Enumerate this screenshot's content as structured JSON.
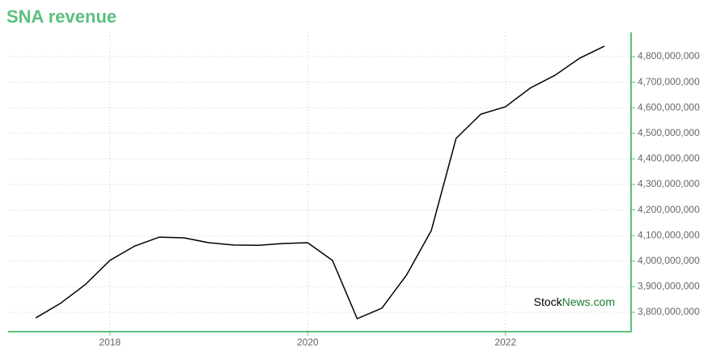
{
  "chart_data": {
    "type": "line",
    "title": "SNA revenue",
    "x": [
      2017.25,
      2017.5,
      2017.75,
      2018,
      2018.25,
      2018.5,
      2018.75,
      2019,
      2019.25,
      2019.5,
      2019.75,
      2020,
      2020.25,
      2020.5,
      2020.75,
      2021,
      2021.25,
      2021.5,
      2021.75,
      2022,
      2022.25,
      2022.5,
      2022.75,
      2023
    ],
    "series": [
      {
        "name": "SNA revenue",
        "color": "#000000",
        "values": [
          3778000000,
          3835000000,
          3908000000,
          4003000000,
          4059000000,
          4094000000,
          4091000000,
          4072000000,
          4063000000,
          4062000000,
          4069000000,
          4072000000,
          4003000000,
          3775000000,
          3816000000,
          3946000000,
          4120000000,
          4480000000,
          4575000000,
          4604000000,
          4677000000,
          4727000000,
          4794000000,
          4841000000
        ]
      }
    ],
    "xlim": [
      2016.97,
      2023.27
    ],
    "xticks": [
      2018,
      2020,
      2022
    ],
    "ylim": [
      3724000000,
      4895000000
    ],
    "yticks": [
      {
        "value": 3800000000,
        "label": "3,800,000,000"
      },
      {
        "value": 3900000000,
        "label": "3,900,000,000"
      },
      {
        "value": 4000000000,
        "label": "4,000,000,000"
      },
      {
        "value": 4100000000,
        "label": "4,100,000,000"
      },
      {
        "value": 4200000000,
        "label": "4,200,000,000"
      },
      {
        "value": 4300000000,
        "label": "4,300,000,000"
      },
      {
        "value": 4400000000,
        "label": "4,400,000,000"
      },
      {
        "value": 4500000000,
        "label": "4,500,000,000"
      },
      {
        "value": 4600000000,
        "label": "4,600,000,000"
      },
      {
        "value": 4700000000,
        "label": "4,700,000,000"
      },
      {
        "value": 4800000000,
        "label": "4,800,000,000"
      }
    ],
    "grid": true,
    "axis_color": "#5bbf7e",
    "watermark": [
      "Stock",
      "News.com"
    ]
  }
}
